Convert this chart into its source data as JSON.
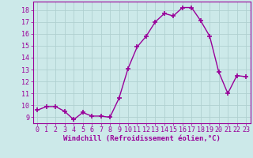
{
  "x": [
    0,
    1,
    2,
    3,
    4,
    5,
    6,
    7,
    8,
    9,
    10,
    11,
    12,
    13,
    14,
    15,
    16,
    17,
    18,
    19,
    20,
    21,
    22,
    23
  ],
  "y": [
    9.6,
    9.9,
    9.9,
    9.5,
    8.8,
    9.4,
    9.1,
    9.1,
    9.0,
    10.6,
    13.1,
    14.9,
    15.8,
    17.0,
    17.7,
    17.5,
    18.2,
    18.2,
    17.1,
    15.8,
    12.8,
    11.0,
    12.5,
    12.4
  ],
  "line_color": "#990099",
  "marker": "+",
  "markersize": 4,
  "markeredgewidth": 1.2,
  "linewidth": 1.0,
  "background_color": "#cce9e9",
  "grid_color": "#b0d0d0",
  "xlabel": "Windchill (Refroidissement éolien,°C)",
  "xlabel_color": "#990099",
  "tick_color": "#990099",
  "xlim": [
    -0.5,
    23.5
  ],
  "ylim": [
    8.5,
    18.7
  ],
  "yticks": [
    9,
    10,
    11,
    12,
    13,
    14,
    15,
    16,
    17,
    18
  ],
  "xticks": [
    0,
    1,
    2,
    3,
    4,
    5,
    6,
    7,
    8,
    9,
    10,
    11,
    12,
    13,
    14,
    15,
    16,
    17,
    18,
    19,
    20,
    21,
    22,
    23
  ],
  "label_fontsize": 6.5,
  "tick_fontsize": 6.0,
  "spine_color": "#990099"
}
